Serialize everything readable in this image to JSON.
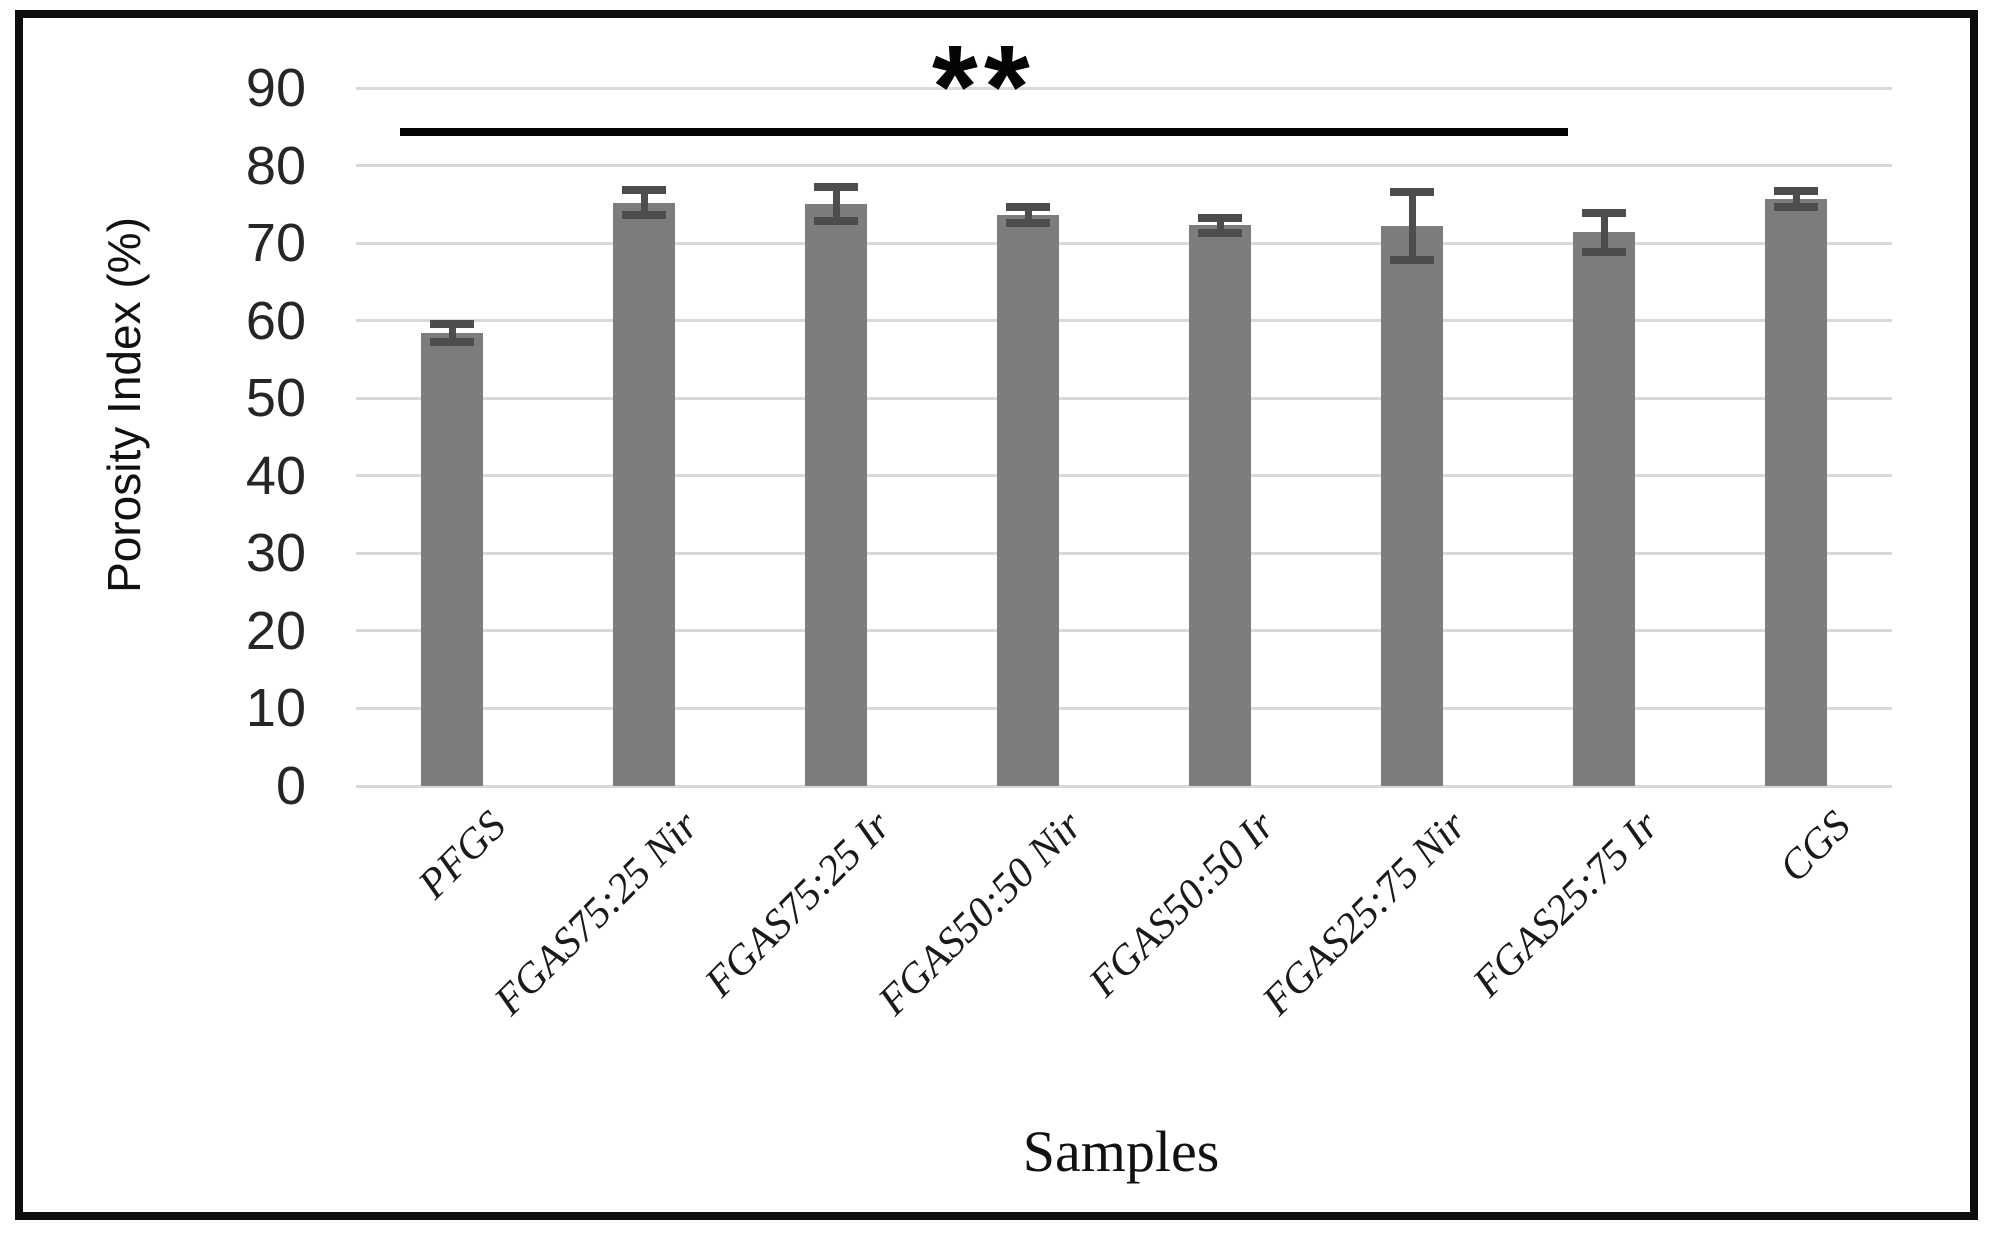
{
  "chart_data": {
    "type": "bar",
    "title": "",
    "xlabel": "Samples",
    "ylabel": "Porosity Index (%)",
    "categories": [
      "PFGS",
      "FGAS75:25 Nir",
      "FGAS75:25 Ir",
      "FGAS50:50 Nir",
      "FGAS50:50 Ir",
      "FGAS25:75 Nir",
      "FGAS25:75 Ir",
      "CGS"
    ],
    "values": [
      58.4,
      75.2,
      75.0,
      73.6,
      72.3,
      72.2,
      71.4,
      75.7
    ],
    "errors": [
      1.2,
      1.6,
      2.2,
      1.0,
      1.0,
      4.4,
      2.5,
      1.0
    ],
    "ylim": [
      0,
      90
    ],
    "yticks": [
      90,
      80,
      70,
      60,
      50,
      40,
      30,
      20,
      10,
      0
    ],
    "grid": true,
    "legend": "none",
    "bar_color": "#7d7d7d",
    "error_bar_color": "#4d4d4d",
    "gridline_color": "#d9d9d9",
    "frame_color": "#0d0d0d",
    "annotation": {
      "text": "**",
      "significance_line": {
        "from_category": "PFGS",
        "to_category": "FGAS25:75 Ir",
        "y_value": 84.3
      }
    }
  }
}
